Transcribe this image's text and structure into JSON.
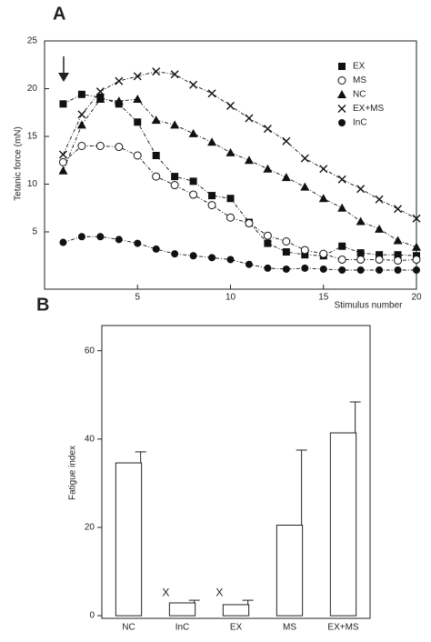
{
  "chart_data": [
    {
      "type": "line",
      "panel": "A",
      "ylabel": "Tetanic force (mN)",
      "xlabel": "Stimulus number",
      "x": [
        1,
        2,
        3,
        4,
        5,
        6,
        7,
        8,
        9,
        10,
        11,
        12,
        13,
        14,
        15,
        16,
        17,
        18,
        19,
        20
      ],
      "xlim": [
        0,
        20
      ],
      "xticks": [
        5,
        10,
        15,
        20
      ],
      "ylim": [
        -1,
        25
      ],
      "yticks": [
        5,
        10,
        15,
        20,
        25
      ],
      "legend": "upper right",
      "series": [
        {
          "name": "EX",
          "color": "#111111",
          "marker": "square-filled",
          "values": [
            18.4,
            19.4,
            19.1,
            18.4,
            16.5,
            13.0,
            10.8,
            10.3,
            8.8,
            8.5,
            6.0,
            3.8,
            2.9,
            2.6,
            2.5,
            3.5,
            2.8,
            2.6,
            2.6,
            2.5
          ]
        },
        {
          "name": "MS",
          "color": "#111111",
          "marker": "circle-open",
          "values": [
            12.3,
            14.0,
            14.0,
            13.9,
            13.0,
            10.8,
            9.9,
            8.9,
            7.8,
            6.5,
            5.9,
            4.6,
            4.0,
            3.1,
            2.7,
            2.1,
            2.1,
            2.1,
            2.0,
            2.1
          ]
        },
        {
          "name": "NC",
          "color": "#111111",
          "marker": "triangle-filled",
          "values": [
            11.4,
            16.2,
            18.9,
            18.7,
            18.9,
            16.7,
            16.2,
            15.3,
            14.4,
            13.3,
            12.5,
            11.6,
            10.7,
            9.7,
            8.5,
            7.5,
            6.1,
            5.3,
            4.1,
            3.4
          ]
        },
        {
          "name": "EX+MS",
          "color": "#111111",
          "marker": "x",
          "values": [
            13.1,
            17.3,
            19.7,
            20.8,
            21.3,
            21.8,
            21.5,
            20.4,
            19.5,
            18.2,
            16.9,
            15.8,
            14.5,
            12.7,
            11.6,
            10.5,
            9.5,
            8.4,
            7.4,
            6.4
          ]
        },
        {
          "name": "InC",
          "color": "#111111",
          "marker": "circle-filled",
          "values": [
            3.9,
            4.5,
            4.5,
            4.2,
            3.8,
            3.2,
            2.7,
            2.5,
            2.3,
            2.1,
            1.6,
            1.2,
            1.1,
            1.2,
            1.1,
            1.0,
            1.0,
            1.0,
            1.0,
            1.0
          ]
        }
      ]
    },
    {
      "type": "bar",
      "panel": "B",
      "ylabel": "Fatigue index",
      "categories": [
        "NC",
        "InC",
        "EX",
        "MS",
        "EX+MS"
      ],
      "values": [
        34.6,
        2.9,
        2.5,
        20.5,
        41.4
      ],
      "errors": [
        2.5,
        0.6,
        1.0,
        17.0,
        7.0
      ],
      "color": "#ffffff",
      "ylim": [
        -0.6,
        65.7
      ],
      "yticks": [
        0,
        20,
        40,
        60
      ],
      "annotations": [
        {
          "category": "InC",
          "text": "X"
        },
        {
          "category": "EX",
          "text": "X"
        }
      ]
    }
  ]
}
